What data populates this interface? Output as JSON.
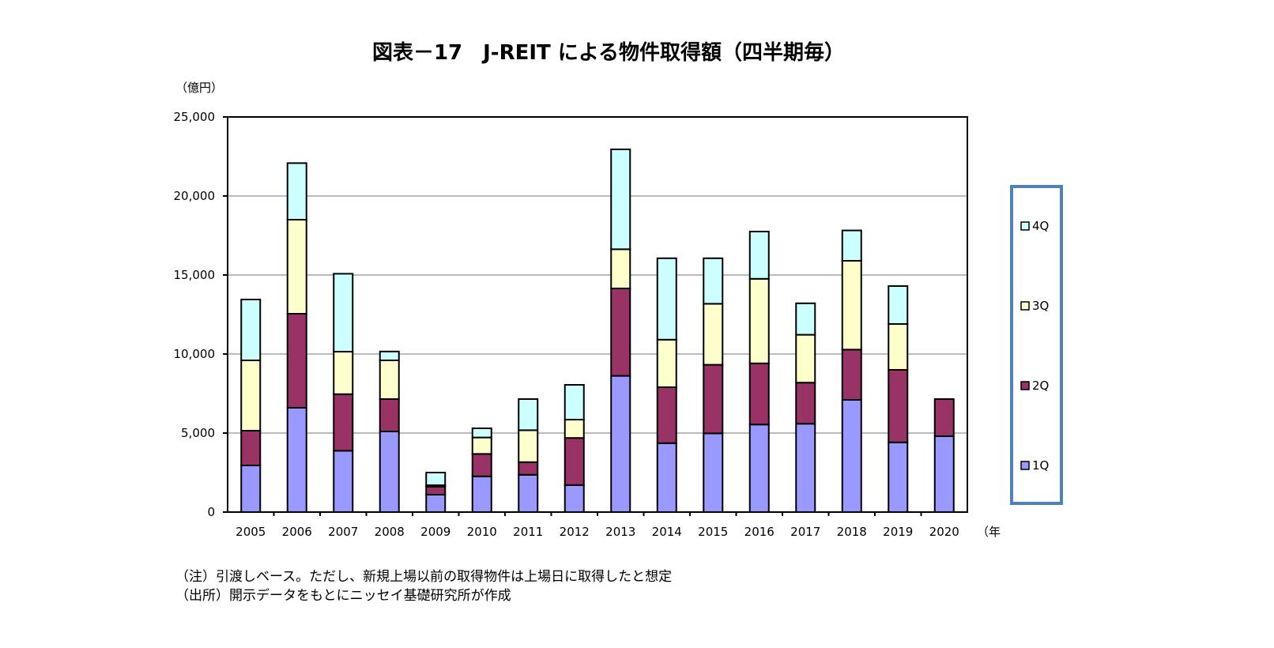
{
  "chart_data": {
    "type": "bar",
    "stacked": true,
    "title": "図表－17　J-REIT による物件取得額（四半期毎）",
    "ylabel": "（億円）",
    "xlabel": "（年",
    "ylim": [
      0,
      25000
    ],
    "yticks": [
      "0",
      "5,000",
      "10,000",
      "15,000",
      "20,000",
      "25,000"
    ],
    "ytick_values": [
      0,
      5000,
      10000,
      15000,
      20000,
      25000
    ],
    "grid": true,
    "legend_placement": "right",
    "categories": [
      "2005",
      "2006",
      "2007",
      "2008",
      "2009",
      "2010",
      "2011",
      "2012",
      "2013",
      "2014",
      "2015",
      "2016",
      "2017",
      "2018",
      "2019",
      "2020"
    ],
    "series": [
      {
        "name": "1Q",
        "color": "#9999FF",
        "values": [
          2950,
          6600,
          3880,
          5100,
          1100,
          2260,
          2360,
          1710,
          8620,
          4360,
          4980,
          5540,
          5590,
          7100,
          4410,
          4800
        ]
      },
      {
        "name": "2Q",
        "color": "#993366",
        "values": [
          2200,
          5950,
          3580,
          2050,
          500,
          1420,
          800,
          2980,
          5530,
          3540,
          4340,
          3870,
          2600,
          3180,
          4590,
          2350
        ]
      },
      {
        "name": "3Q",
        "color": "#FFFFCC",
        "values": [
          4450,
          5950,
          2690,
          2450,
          100,
          1040,
          2020,
          1160,
          2480,
          3010,
          3860,
          5350,
          3030,
          5620,
          2900,
          null
        ]
      },
      {
        "name": "4Q",
        "color": "#CCFFFF",
        "values": [
          3850,
          3580,
          4930,
          560,
          800,
          580,
          1970,
          2200,
          6320,
          5150,
          2880,
          2990,
          1990,
          1920,
          2400,
          null
        ]
      }
    ]
  },
  "legend_border_color": "#4F81BD",
  "notes": {
    "note": "（注）引渡しベース。ただし、新規上場以前の取得物件は上場日に取得したと想定",
    "source": "（出所）開示データをもとにニッセイ基礎研究所が作成"
  }
}
